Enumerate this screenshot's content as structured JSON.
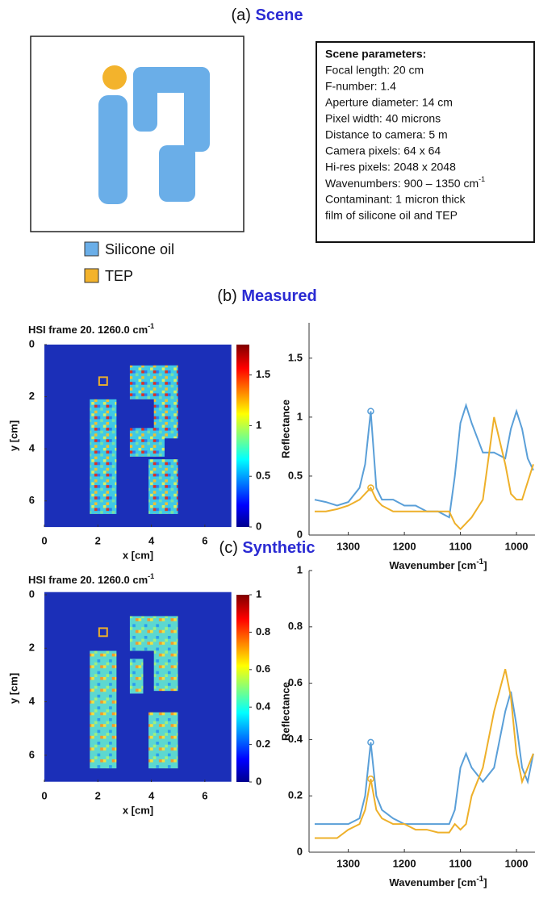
{
  "figure": {
    "panel_a": {
      "label": "(a)",
      "title": "Scene",
      "legend": [
        "Silicone oil",
        "TEP"
      ],
      "parameters": {
        "title": "Scene parameters:",
        "lines": [
          "Focal length:  20 cm",
          "F-number: 1.4",
          "Aperture diameter: 14 cm",
          "Pixel width: 40 microns",
          "Distance to camera: 5 m",
          "Camera pixels: 64 x 64",
          "Hi-res pixels: 2048 x 2048"
        ],
        "wavenumbers": {
          "text": "Wavenumbers: 900 – 1350 cm",
          "sup": "-1"
        },
        "contaminant": [
          "Contaminant: 1 micron thick",
          "film of silicone oil and TEP"
        ]
      }
    },
    "panel_b": {
      "label": "(b)",
      "title": "Measured"
    },
    "panel_c": {
      "label": "(c)",
      "title": "Synthetic"
    }
  },
  "chart_data": [
    {
      "type": "heatmap",
      "title": "HSI frame 20. 1260.0 cm",
      "title_sup": "-1",
      "xlabel": "x [cm]",
      "ylabel": "y [cm]",
      "xlim": [
        0,
        7
      ],
      "ylim": [
        7,
        0
      ],
      "xticks": [
        0,
        2,
        4,
        6
      ],
      "yticks": [
        0,
        2,
        4,
        6
      ],
      "clim": [
        0,
        1.8
      ],
      "cticks": [
        0,
        0.5,
        1,
        1.5
      ]
    },
    {
      "type": "line",
      "ylabel": "Reflectance",
      "xlabel": "Wavenumber [cm",
      "xlabel_sup": "-1",
      "xlabel_end": "]",
      "xlim": [
        1370,
        967
      ],
      "ylim": [
        0,
        1.8
      ],
      "xticks": [
        1300,
        1200,
        1100,
        1000
      ],
      "yticks": [
        0,
        0.5,
        1,
        1.5
      ],
      "x": [
        1360,
        1340,
        1320,
        1300,
        1280,
        1270,
        1260,
        1250,
        1240,
        1220,
        1200,
        1180,
        1160,
        1140,
        1120,
        1110,
        1100,
        1090,
        1080,
        1060,
        1040,
        1020,
        1010,
        1000,
        990,
        980,
        970
      ],
      "series": [
        {
          "color": "#5a9fd8",
          "values": [
            0.3,
            0.28,
            0.25,
            0.28,
            0.4,
            0.6,
            1.05,
            0.4,
            0.3,
            0.3,
            0.25,
            0.25,
            0.2,
            0.2,
            0.15,
            0.5,
            0.95,
            1.1,
            0.95,
            0.7,
            0.7,
            0.65,
            0.9,
            1.05,
            0.9,
            0.65,
            0.55
          ]
        },
        {
          "color": "#eeb02a",
          "values": [
            0.2,
            0.2,
            0.22,
            0.25,
            0.3,
            0.35,
            0.4,
            0.3,
            0.25,
            0.2,
            0.2,
            0.2,
            0.2,
            0.2,
            0.2,
            0.1,
            0.05,
            0.1,
            0.15,
            0.3,
            1.0,
            0.6,
            0.35,
            0.3,
            0.3,
            0.45,
            0.6
          ]
        }
      ]
    },
    {
      "type": "heatmap",
      "title": "HSI frame 20. 1260.0 cm",
      "title_sup": "-1",
      "xlabel": "x [cm]",
      "ylabel": "y [cm]",
      "xlim": [
        0,
        7
      ],
      "ylim": [
        7,
        0
      ],
      "xticks": [
        0,
        2,
        4,
        6
      ],
      "yticks": [
        0,
        2,
        4,
        6
      ],
      "clim": [
        0,
        1
      ],
      "cticks": [
        0,
        0.2,
        0.4,
        0.6,
        0.8,
        1
      ]
    },
    {
      "type": "line",
      "ylabel": "Reflectance",
      "xlabel": "Wavenumber [cm",
      "xlabel_sup": "-1",
      "xlabel_end": "]",
      "xlim": [
        1370,
        967
      ],
      "ylim": [
        0,
        1
      ],
      "xticks": [
        1300,
        1200,
        1100,
        1000
      ],
      "yticks": [
        0,
        0.2,
        0.4,
        0.6,
        0.8,
        1
      ],
      "x": [
        1360,
        1340,
        1320,
        1300,
        1280,
        1270,
        1260,
        1250,
        1240,
        1220,
        1200,
        1180,
        1160,
        1140,
        1120,
        1110,
        1100,
        1090,
        1080,
        1060,
        1040,
        1020,
        1010,
        1000,
        990,
        980,
        970
      ],
      "series": [
        {
          "color": "#5a9fd8",
          "values": [
            0.1,
            0.1,
            0.1,
            0.1,
            0.12,
            0.2,
            0.39,
            0.2,
            0.15,
            0.12,
            0.1,
            0.1,
            0.1,
            0.1,
            0.1,
            0.15,
            0.3,
            0.35,
            0.3,
            0.25,
            0.3,
            0.5,
            0.57,
            0.45,
            0.3,
            0.25,
            0.35
          ]
        },
        {
          "color": "#eeb02a",
          "values": [
            0.05,
            0.05,
            0.05,
            0.08,
            0.1,
            0.15,
            0.26,
            0.15,
            0.12,
            0.1,
            0.1,
            0.08,
            0.08,
            0.07,
            0.07,
            0.1,
            0.08,
            0.1,
            0.2,
            0.3,
            0.5,
            0.65,
            0.55,
            0.35,
            0.25,
            0.3,
            0.35
          ]
        }
      ]
    }
  ]
}
